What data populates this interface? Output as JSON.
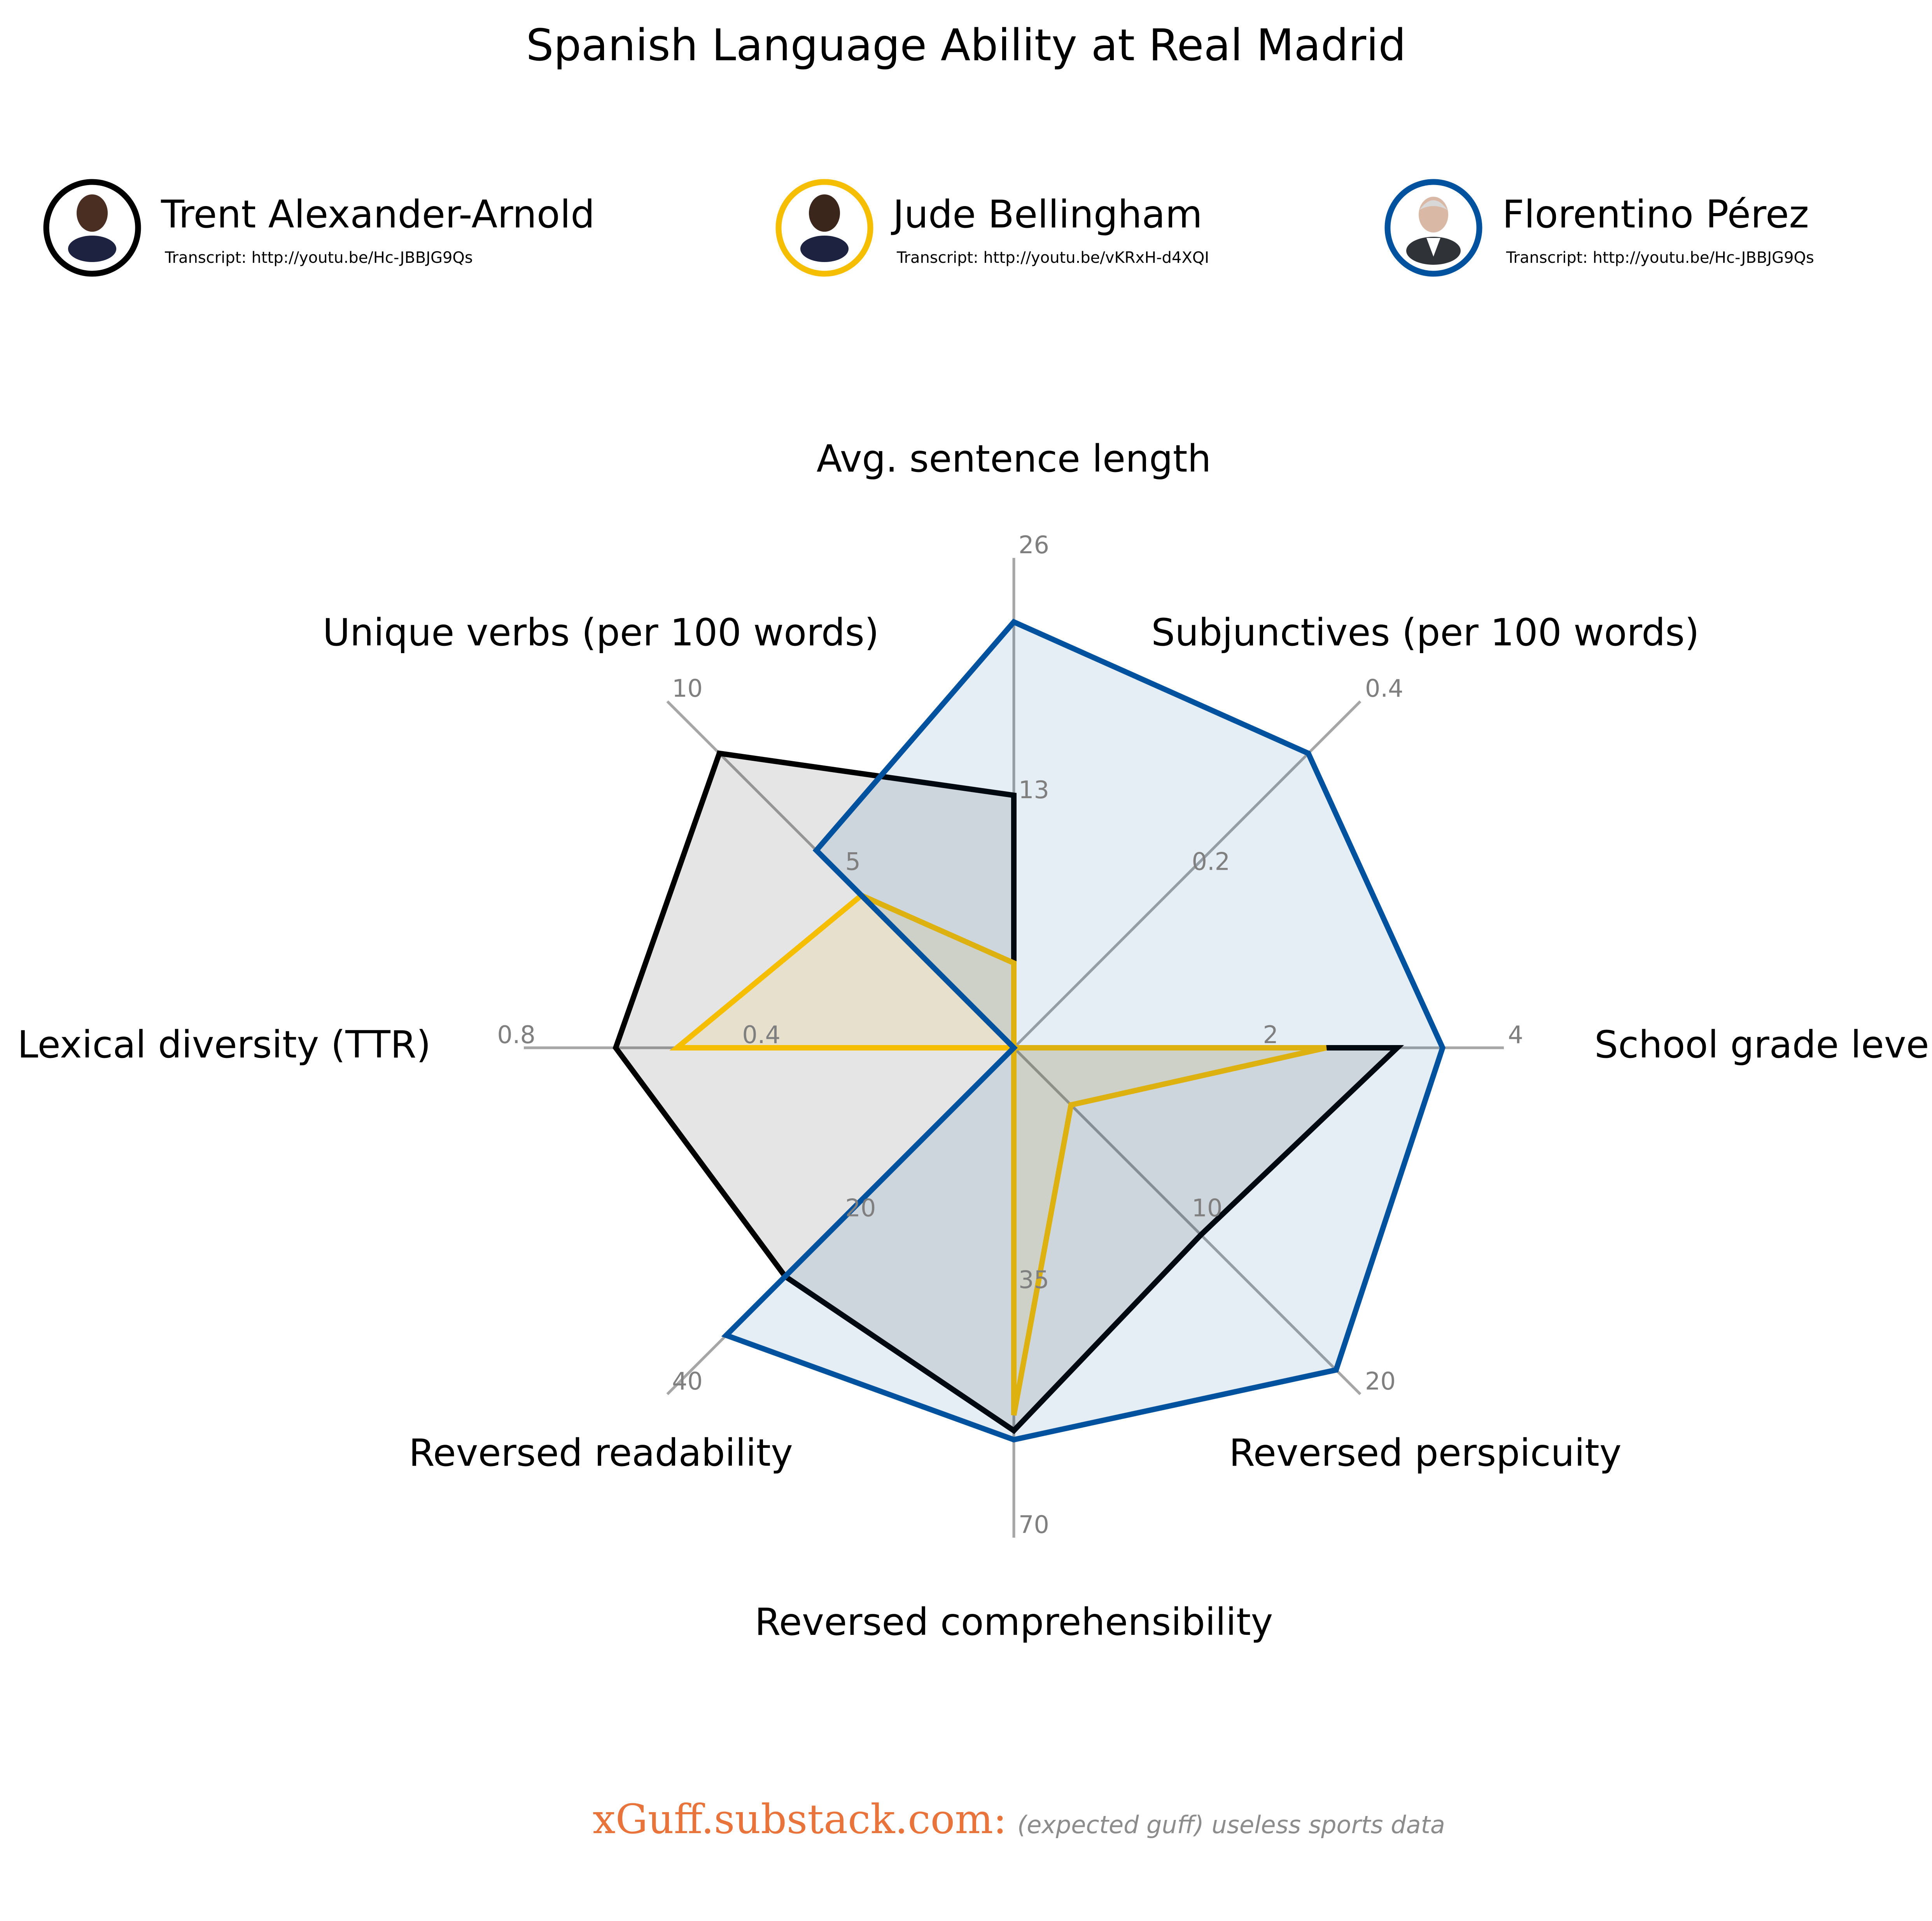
{
  "title": "Spanish Language Ability at Real Madrid",
  "players": [
    {
      "name": "Trent Alexander-Arnold",
      "transcript": "Transcript: http://youtu.be/Hc-JBBJG9Qs",
      "color": "#000000",
      "fill": "rgba(0,0,0,0.10)",
      "avatar": "player-photo-dark-kit"
    },
    {
      "name": "Jude Bellingham",
      "transcript": "Transcript: http://youtu.be/vKRxH-d4XQI",
      "color": "#f6be00",
      "fill": "rgba(246,190,0,0.10)",
      "avatar": "player-photo-dark-kit"
    },
    {
      "name": "Florentino Pérez",
      "transcript": "Transcript: http://youtu.be/Hc-JBBJG9Qs",
      "color": "#00529f",
      "fill": "rgba(0,82,159,0.10)",
      "avatar": "president-photo-suit"
    }
  ],
  "footer": {
    "site": "xGuff.substack.com:",
    "tagline": "(expected guff) useless sports data"
  },
  "chart_data": {
    "type": "radar",
    "title": "Spanish Language Ability at Real Madrid",
    "axes": [
      {
        "label": "Avg. sentence length",
        "ticks": [
          "13",
          "26"
        ],
        "max": 26
      },
      {
        "label": "Subjunctives (per 100 words)",
        "ticks": [
          "0.2",
          "0.4"
        ],
        "max": 0.4
      },
      {
        "label": "School grade level",
        "ticks": [
          "2",
          "4"
        ],
        "max": 4
      },
      {
        "label": "Reversed perspicuity",
        "ticks": [
          "10",
          "20"
        ],
        "max": 20
      },
      {
        "label": "Reversed comprehensibility",
        "ticks": [
          "35",
          "70"
        ],
        "max": 70
      },
      {
        "label": "Reversed readability",
        "ticks": [
          "20",
          "40"
        ],
        "max": 40
      },
      {
        "label": "Lexical diversity (TTR)",
        "ticks": [
          "0.4",
          "0.8"
        ],
        "max": 0.8
      },
      {
        "label": "Unique verbs (per 100 words)",
        "ticks": [
          "5",
          "10"
        ],
        "max": 10
      }
    ],
    "series": [
      {
        "name": "Trent Alexander-Arnold",
        "values": [
          13.4,
          0.0,
          3.13,
          10.8,
          54.7,
          26.4,
          0.65,
          8.5
        ]
      },
      {
        "name": "Jude Bellingham",
        "values": [
          4.5,
          0.0,
          2.55,
          3.3,
          52.5,
          0.0,
          0.55,
          4.4
        ]
      },
      {
        "name": "Florentino Pérez",
        "values": [
          22.6,
          0.34,
          3.5,
          18.6,
          56.0,
          33.2,
          0.0,
          5.7
        ]
      }
    ],
    "grid": false,
    "legend_position": "top"
  }
}
